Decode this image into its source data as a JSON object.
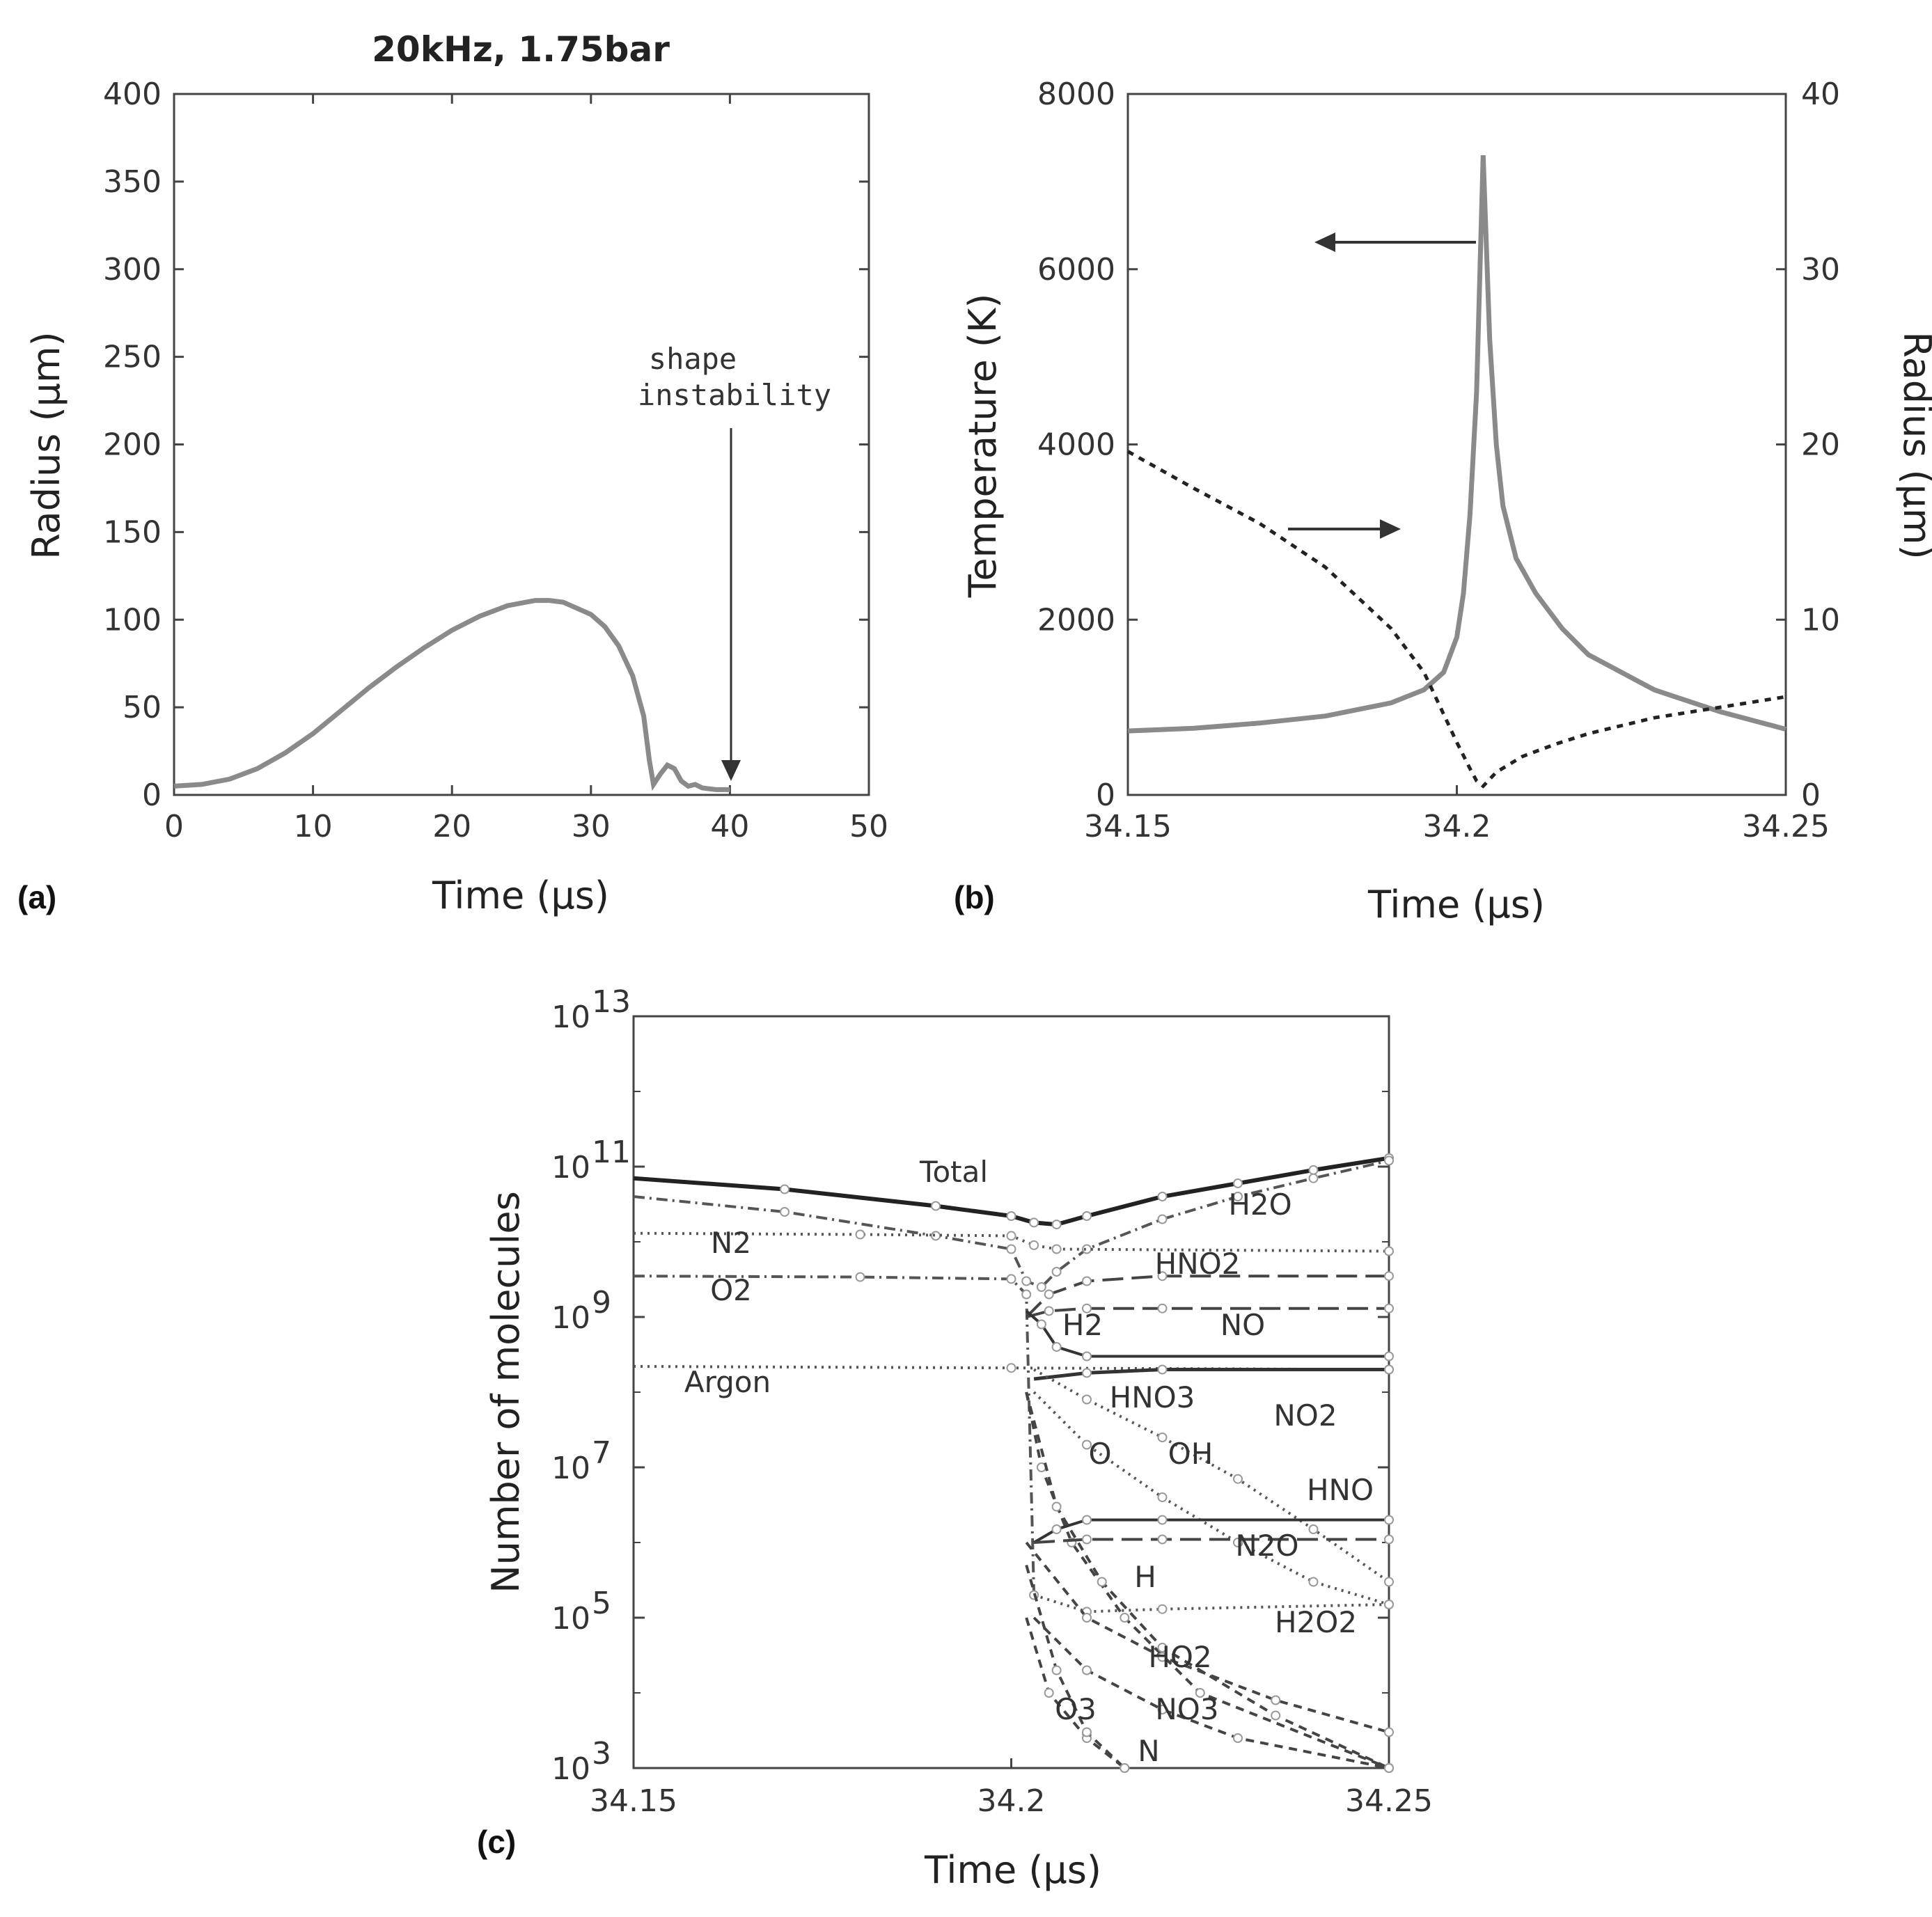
{
  "chart_data": [
    {
      "panel": "(a)",
      "type": "line",
      "title": "20kHz, 1.75bar",
      "xlabel": "Time (µs)",
      "ylabel": "Radius (µm)",
      "xlim": [
        0,
        50
      ],
      "ylim": [
        0,
        400
      ],
      "xticks": [
        "0",
        "10",
        "20",
        "30",
        "40",
        "50"
      ],
      "yticks": [
        "0",
        "50",
        "100",
        "150",
        "200",
        "250",
        "300",
        "350",
        "400"
      ],
      "grid": false,
      "annotation": {
        "line1": "shape",
        "line2": "instability",
        "x": 40
      },
      "series": [
        {
          "x": [
            0,
            2,
            4,
            6,
            8,
            10,
            12,
            14,
            16,
            18,
            20,
            22,
            24,
            26,
            27,
            28,
            30,
            31,
            32,
            33,
            33.8,
            34.2,
            34.5,
            35,
            35.5,
            36,
            36.5,
            37,
            37.5,
            38,
            39,
            40
          ],
          "y": [
            5,
            6,
            9,
            15,
            24,
            35,
            48,
            61,
            73,
            84,
            94,
            102,
            108,
            111,
            111,
            110,
            103,
            96,
            85,
            68,
            45,
            20,
            6,
            12,
            17,
            15,
            8,
            5,
            6,
            4,
            3,
            3
          ]
        }
      ]
    },
    {
      "panel": "(b)",
      "type": "line",
      "xlabel": "Time (µs)",
      "ylabel": "Temperature (K)",
      "ylabel_right": "Radius (µm)",
      "xlim": [
        34.15,
        34.25
      ],
      "ylim": [
        0,
        8000
      ],
      "ylim_right": [
        0,
        40
      ],
      "xticks": [
        "34.15",
        "34.2",
        "34.25"
      ],
      "yticks": [
        "0",
        "2000",
        "4000",
        "6000",
        "8000"
      ],
      "yticks_right": [
        "0",
        "10",
        "20",
        "30",
        "40"
      ],
      "grid": false,
      "series": [
        {
          "axis": "left",
          "style": "solid",
          "x": [
            34.15,
            34.16,
            34.17,
            34.18,
            34.19,
            34.195,
            34.198,
            34.2,
            34.201,
            34.202,
            34.203,
            34.204,
            34.205,
            34.206,
            34.207,
            34.209,
            34.212,
            34.216,
            34.22,
            34.23,
            34.24,
            34.25
          ],
          "y": [
            730,
            760,
            820,
            900,
            1050,
            1200,
            1400,
            1800,
            2300,
            3200,
            4600,
            7300,
            5200,
            4000,
            3300,
            2700,
            2300,
            1900,
            1600,
            1200,
            950,
            750
          ]
        },
        {
          "axis": "right",
          "style": "dotted",
          "x": [
            34.15,
            34.16,
            34.17,
            34.18,
            34.19,
            34.195,
            34.2,
            34.202,
            34.203,
            34.204,
            34.206,
            34.21,
            34.215,
            34.22,
            34.23,
            34.24,
            34.25
          ],
          "y": [
            19.6,
            17.5,
            15.5,
            13.0,
            9.5,
            7.0,
            3.0,
            1.5,
            0.8,
            0.5,
            1.3,
            2.2,
            2.9,
            3.5,
            4.4,
            5.0,
            5.6
          ]
        }
      ]
    },
    {
      "panel": "(c)",
      "type": "line",
      "xlabel": "Time (µs)",
      "ylabel": "Number of molecules",
      "yscale": "log",
      "xlim": [
        34.15,
        34.25
      ],
      "ylim": [
        1000,
        10000000000000
      ],
      "xticks": [
        "34.15",
        "34.2",
        "34.25"
      ],
      "yticks": [
        {
          "base": "10",
          "exp": "13"
        },
        {
          "base": "10",
          "exp": "11"
        },
        {
          "base": "10",
          "exp": "9"
        },
        {
          "base": "10",
          "exp": "7"
        },
        {
          "base": "10",
          "exp": "5"
        },
        {
          "base": "10",
          "exp": "3"
        }
      ],
      "grid": false,
      "series": [
        {
          "name": "Total",
          "style": "thick",
          "x": [
            34.15,
            34.17,
            34.19,
            34.2,
            34.203,
            34.206,
            34.21,
            34.22,
            34.23,
            34.24,
            34.25
          ],
          "y": [
            70000000000,
            50000000000,
            30000000000,
            22000000000,
            18000000000,
            17000000000,
            22000000000,
            40000000000,
            60000000000,
            90000000000,
            130000000000
          ]
        },
        {
          "name": "H2O",
          "style": "dashdot",
          "x": [
            34.15,
            34.17,
            34.19,
            34.2,
            34.202,
            34.204,
            34.206,
            34.21,
            34.22,
            34.23,
            34.24,
            34.25
          ],
          "y": [
            40000000000,
            25000000000,
            12000000000,
            8000000000,
            3000000000,
            2500000000,
            4000000000,
            8000000000,
            20000000000,
            40000000000,
            70000000000,
            120000000000
          ]
        },
        {
          "name": "N2",
          "style": "dotted",
          "x": [
            34.15,
            34.18,
            34.2,
            34.203,
            34.206,
            34.25
          ],
          "y": [
            13000000000,
            12500000000,
            12000000000,
            9000000000,
            8000000000,
            7500000000
          ]
        },
        {
          "name": "O2",
          "style": "dashdot",
          "x": [
            34.15,
            34.18,
            34.2,
            34.202,
            34.203
          ],
          "y": [
            3500000000,
            3400000000,
            3200000000,
            2000000000,
            200000
          ]
        },
        {
          "name": "HNO2",
          "style": "longdash",
          "x": [
            34.202,
            34.205,
            34.21,
            34.22,
            34.25
          ],
          "y": [
            1000000000,
            2000000000,
            3000000000,
            3500000000,
            3500000000
          ]
        },
        {
          "name": "NO",
          "style": "longdash",
          "x": [
            34.202,
            34.205,
            34.21,
            34.22,
            34.25
          ],
          "y": [
            1000000000,
            1200000000,
            1300000000,
            1300000000,
            1300000000
          ]
        },
        {
          "name": "H2",
          "style": "solid",
          "x": [
            34.202,
            34.204,
            34.206,
            34.21,
            34.25
          ],
          "y": [
            1200000000,
            800000000,
            400000000,
            300000000,
            300000000
          ]
        },
        {
          "name": "Argon",
          "style": "dotted",
          "x": [
            34.15,
            34.2,
            34.25
          ],
          "y": [
            220000000,
            210000000,
            200000000
          ]
        },
        {
          "name": "NO2",
          "style": "solid-x",
          "x": [
            34.203,
            34.21,
            34.22,
            34.25
          ],
          "y": [
            150000000,
            180000000,
            200000000,
            200000000
          ]
        },
        {
          "name": "HNO3",
          "style": "dotted",
          "x": [
            34.203,
            34.21,
            34.22,
            34.23,
            34.24,
            34.25
          ],
          "y": [
            100000000,
            20000000,
            4000000,
            1000000,
            300000,
            150000
          ]
        },
        {
          "name": "OH",
          "style": "dotted",
          "x": [
            34.203,
            34.21,
            34.22,
            34.23,
            34.24,
            34.25
          ],
          "y": [
            200000000,
            80000000,
            25000000,
            7000000,
            1500000,
            300000
          ]
        },
        {
          "name": "O",
          "style": "dashed",
          "x": [
            34.202,
            34.204,
            34.208,
            34.215,
            34.225,
            34.25
          ],
          "y": [
            100000000,
            10000000,
            1000000,
            100000,
            10000,
            1000
          ]
        },
        {
          "name": "HNO",
          "style": "solid",
          "x": [
            34.203,
            34.206,
            34.21,
            34.22,
            34.25
          ],
          "y": [
            1000000,
            1500000,
            2000000,
            2000000,
            2000000
          ]
        },
        {
          "name": "N2O",
          "style": "longdash",
          "x": [
            34.203,
            34.21,
            34.22,
            34.25
          ],
          "y": [
            1000000,
            1100000,
            1100000,
            1100000
          ]
        },
        {
          "name": "H",
          "style": "dashed",
          "x": [
            34.202,
            34.206,
            34.212,
            34.22,
            34.235,
            34.25
          ],
          "y": [
            100000000,
            3000000,
            300000,
            40000,
            5000,
            1000
          ]
        },
        {
          "name": "H2O2",
          "style": "dotted",
          "x": [
            34.203,
            34.21,
            34.22,
            34.25
          ],
          "y": [
            200000,
            120000,
            130000,
            150000
          ]
        },
        {
          "name": "HO2",
          "style": "dashed",
          "x": [
            34.202,
            34.21,
            34.22,
            34.235,
            34.25
          ],
          "y": [
            1000000,
            100000,
            30000,
            8000,
            3000
          ]
        },
        {
          "name": "O3",
          "style": "dashed",
          "x": [
            34.202,
            34.205,
            34.21,
            34.215
          ],
          "y": [
            100000,
            10000,
            2500,
            1000
          ]
        },
        {
          "name": "NO3",
          "style": "dashed",
          "x": [
            34.203,
            34.21,
            34.22,
            34.23,
            34.25
          ],
          "y": [
            100000,
            20000,
            6000,
            2500,
            1000
          ]
        },
        {
          "name": "N",
          "style": "dashed",
          "x": [
            34.202,
            34.206,
            34.21,
            34.215
          ],
          "y": [
            500000,
            20000,
            3000,
            1000
          ]
        }
      ]
    }
  ]
}
